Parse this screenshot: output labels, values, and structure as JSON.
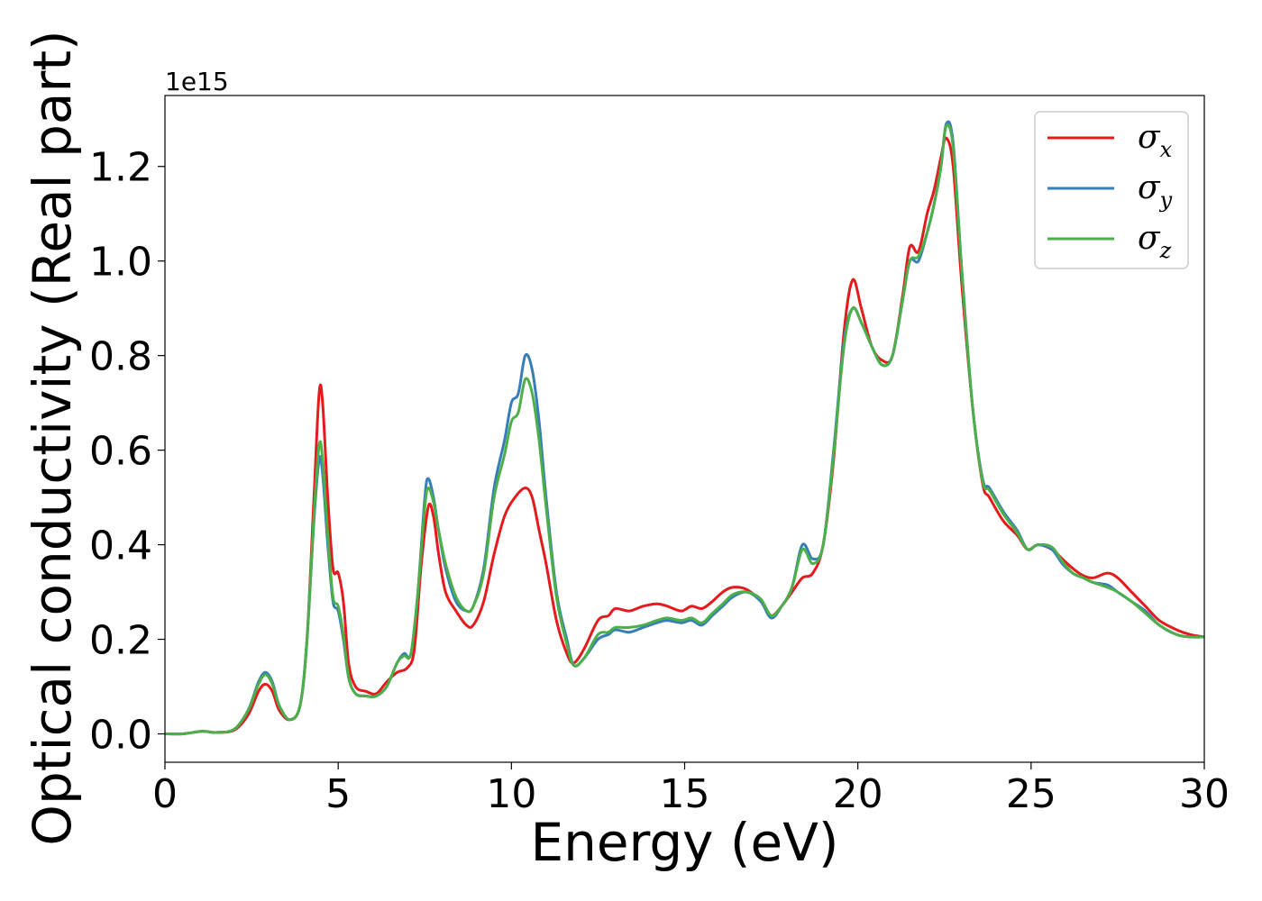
{
  "chart_data": {
    "type": "line",
    "xlabel": "Energy (eV)",
    "ylabel": "Optical conductivity (Real part)",
    "y_offset_label": "1e15",
    "xlim": [
      0,
      30
    ],
    "ylim": [
      -0.06,
      1.35
    ],
    "xticks": [
      0,
      5,
      10,
      15,
      20,
      25,
      30
    ],
    "xtick_labels": [
      "0",
      "5",
      "10",
      "15",
      "20",
      "25",
      "30"
    ],
    "yticks": [
      0.0,
      0.2,
      0.4,
      0.6,
      0.8,
      1.0,
      1.2
    ],
    "ytick_labels": [
      "0.0",
      "0.2",
      "0.4",
      "0.6",
      "0.8",
      "1.0",
      "1.2"
    ],
    "grid": false,
    "legend_position": "top-right",
    "series": [
      {
        "name": "σx",
        "symbol": "σ",
        "subscript": "x",
        "color": "#e41a1c",
        "x": [
          0,
          0.5,
          1.0,
          1.2,
          1.5,
          2.0,
          2.4,
          2.7,
          2.9,
          3.1,
          3.3,
          3.6,
          3.9,
          4.1,
          4.3,
          4.45,
          4.55,
          4.7,
          4.85,
          5.0,
          5.15,
          5.3,
          5.5,
          5.8,
          6.1,
          6.4,
          6.7,
          7.0,
          7.2,
          7.4,
          7.6,
          7.75,
          7.9,
          8.1,
          8.4,
          8.7,
          8.9,
          9.2,
          9.5,
          9.8,
          10.1,
          10.4,
          10.6,
          10.8,
          11.0,
          11.3,
          11.6,
          11.8,
          12.1,
          12.5,
          12.8,
          13.0,
          13.4,
          13.8,
          14.2,
          14.5,
          14.9,
          15.2,
          15.5,
          15.8,
          16.1,
          16.4,
          16.8,
          17.2,
          17.5,
          17.8,
          18.1,
          18.4,
          18.7,
          19.0,
          19.3,
          19.6,
          19.85,
          20.1,
          20.4,
          20.7,
          21.0,
          21.3,
          21.5,
          21.75,
          22.0,
          22.2,
          22.4,
          22.55,
          22.75,
          23.0,
          23.3,
          23.6,
          23.8,
          24.2,
          24.6,
          24.9,
          25.2,
          25.6,
          25.9,
          26.2,
          26.5,
          26.8,
          27.2,
          27.5,
          27.9,
          28.3,
          28.7,
          29.2,
          29.6,
          30.0
        ],
        "y": [
          0.0,
          0.0,
          0.005,
          0.005,
          0.003,
          0.008,
          0.04,
          0.09,
          0.105,
          0.09,
          0.05,
          0.03,
          0.06,
          0.2,
          0.5,
          0.72,
          0.7,
          0.5,
          0.35,
          0.34,
          0.28,
          0.15,
          0.1,
          0.09,
          0.085,
          0.11,
          0.13,
          0.14,
          0.18,
          0.36,
          0.48,
          0.46,
          0.38,
          0.3,
          0.26,
          0.23,
          0.23,
          0.28,
          0.38,
          0.46,
          0.5,
          0.52,
          0.5,
          0.43,
          0.36,
          0.24,
          0.17,
          0.15,
          0.18,
          0.24,
          0.25,
          0.265,
          0.26,
          0.27,
          0.275,
          0.27,
          0.26,
          0.27,
          0.265,
          0.28,
          0.3,
          0.31,
          0.305,
          0.28,
          0.25,
          0.27,
          0.3,
          0.33,
          0.34,
          0.4,
          0.58,
          0.85,
          0.96,
          0.9,
          0.82,
          0.79,
          0.8,
          0.93,
          1.03,
          1.02,
          1.1,
          1.15,
          1.22,
          1.26,
          1.2,
          0.95,
          0.7,
          0.53,
          0.5,
          0.45,
          0.42,
          0.39,
          0.4,
          0.39,
          0.37,
          0.35,
          0.335,
          0.33,
          0.34,
          0.33,
          0.3,
          0.27,
          0.24,
          0.22,
          0.21,
          0.205
        ]
      },
      {
        "name": "σy",
        "symbol": "σ",
        "subscript": "y",
        "color": "#377eb8",
        "x": [
          0,
          0.5,
          1.0,
          1.2,
          1.5,
          2.0,
          2.4,
          2.7,
          2.9,
          3.1,
          3.3,
          3.6,
          3.9,
          4.1,
          4.3,
          4.45,
          4.55,
          4.7,
          4.85,
          5.0,
          5.15,
          5.3,
          5.5,
          5.8,
          6.1,
          6.4,
          6.7,
          6.9,
          7.1,
          7.3,
          7.5,
          7.6,
          7.75,
          7.9,
          8.1,
          8.4,
          8.7,
          8.9,
          9.2,
          9.5,
          9.8,
          10.0,
          10.2,
          10.4,
          10.6,
          10.8,
          11.0,
          11.3,
          11.6,
          11.8,
          12.1,
          12.5,
          12.8,
          13.0,
          13.4,
          13.8,
          14.2,
          14.5,
          14.9,
          15.2,
          15.5,
          15.8,
          16.1,
          16.4,
          16.8,
          17.2,
          17.5,
          17.8,
          18.1,
          18.4,
          18.7,
          19.0,
          19.3,
          19.6,
          19.85,
          20.1,
          20.4,
          20.7,
          21.0,
          21.3,
          21.5,
          21.75,
          22.0,
          22.2,
          22.4,
          22.55,
          22.75,
          23.0,
          23.3,
          23.6,
          23.8,
          24.2,
          24.6,
          24.9,
          25.2,
          25.6,
          25.9,
          26.2,
          26.5,
          26.8,
          27.2,
          27.5,
          27.9,
          28.3,
          28.7,
          29.2,
          29.6,
          30.0
        ],
        "y": [
          0.0,
          0.0,
          0.005,
          0.005,
          0.003,
          0.01,
          0.05,
          0.11,
          0.13,
          0.11,
          0.06,
          0.03,
          0.06,
          0.2,
          0.45,
          0.58,
          0.55,
          0.4,
          0.28,
          0.26,
          0.2,
          0.12,
          0.085,
          0.08,
          0.08,
          0.1,
          0.15,
          0.17,
          0.17,
          0.3,
          0.5,
          0.54,
          0.5,
          0.43,
          0.35,
          0.28,
          0.26,
          0.27,
          0.35,
          0.52,
          0.62,
          0.7,
          0.72,
          0.8,
          0.77,
          0.66,
          0.5,
          0.3,
          0.2,
          0.145,
          0.16,
          0.2,
          0.21,
          0.22,
          0.215,
          0.225,
          0.235,
          0.24,
          0.235,
          0.24,
          0.23,
          0.25,
          0.27,
          0.29,
          0.3,
          0.28,
          0.245,
          0.27,
          0.31,
          0.4,
          0.37,
          0.4,
          0.6,
          0.83,
          0.9,
          0.87,
          0.82,
          0.78,
          0.8,
          0.92,
          1.0,
          1.0,
          1.06,
          1.12,
          1.2,
          1.29,
          1.25,
          0.98,
          0.7,
          0.54,
          0.52,
          0.47,
          0.43,
          0.39,
          0.4,
          0.39,
          0.36,
          0.34,
          0.33,
          0.32,
          0.315,
          0.3,
          0.28,
          0.26,
          0.23,
          0.21,
          0.205,
          0.205
        ]
      },
      {
        "name": "σz",
        "symbol": "σ",
        "subscript": "z",
        "color": "#4daf4a",
        "x": [
          0,
          0.5,
          1.0,
          1.2,
          1.5,
          2.0,
          2.4,
          2.7,
          2.9,
          3.1,
          3.3,
          3.6,
          3.9,
          4.1,
          4.3,
          4.45,
          4.55,
          4.7,
          4.85,
          5.0,
          5.15,
          5.3,
          5.5,
          5.8,
          6.1,
          6.4,
          6.7,
          6.9,
          7.1,
          7.3,
          7.5,
          7.6,
          7.75,
          7.9,
          8.1,
          8.4,
          8.7,
          8.9,
          9.2,
          9.5,
          9.8,
          10.0,
          10.2,
          10.4,
          10.6,
          10.8,
          11.0,
          11.3,
          11.6,
          11.8,
          12.1,
          12.5,
          12.8,
          13.0,
          13.4,
          13.8,
          14.2,
          14.5,
          14.9,
          15.2,
          15.5,
          15.8,
          16.1,
          16.4,
          16.8,
          17.2,
          17.5,
          17.8,
          18.1,
          18.4,
          18.7,
          19.0,
          19.3,
          19.6,
          19.85,
          20.1,
          20.4,
          20.7,
          21.0,
          21.3,
          21.5,
          21.75,
          22.0,
          22.2,
          22.4,
          22.55,
          22.75,
          23.0,
          23.3,
          23.6,
          23.8,
          24.2,
          24.6,
          24.9,
          25.2,
          25.6,
          25.9,
          26.2,
          26.5,
          26.8,
          27.2,
          27.5,
          27.9,
          28.3,
          28.7,
          29.2,
          29.6,
          30.0
        ],
        "y": [
          0.0,
          0.0,
          0.005,
          0.005,
          0.003,
          0.01,
          0.05,
          0.105,
          0.125,
          0.105,
          0.06,
          0.03,
          0.06,
          0.2,
          0.46,
          0.61,
          0.58,
          0.42,
          0.29,
          0.27,
          0.21,
          0.12,
          0.085,
          0.08,
          0.08,
          0.1,
          0.15,
          0.165,
          0.17,
          0.3,
          0.48,
          0.52,
          0.49,
          0.43,
          0.36,
          0.29,
          0.26,
          0.27,
          0.34,
          0.5,
          0.59,
          0.66,
          0.68,
          0.75,
          0.72,
          0.62,
          0.48,
          0.29,
          0.19,
          0.145,
          0.16,
          0.21,
          0.215,
          0.225,
          0.225,
          0.23,
          0.24,
          0.245,
          0.24,
          0.245,
          0.235,
          0.255,
          0.275,
          0.295,
          0.3,
          0.285,
          0.25,
          0.27,
          0.31,
          0.39,
          0.36,
          0.4,
          0.59,
          0.82,
          0.9,
          0.87,
          0.82,
          0.78,
          0.8,
          0.92,
          1.0,
          1.01,
          1.06,
          1.12,
          1.2,
          1.285,
          1.24,
          0.98,
          0.7,
          0.535,
          0.515,
          0.465,
          0.425,
          0.39,
          0.4,
          0.395,
          0.365,
          0.34,
          0.33,
          0.32,
          0.31,
          0.3,
          0.28,
          0.255,
          0.23,
          0.21,
          0.205,
          0.205
        ]
      }
    ]
  }
}
